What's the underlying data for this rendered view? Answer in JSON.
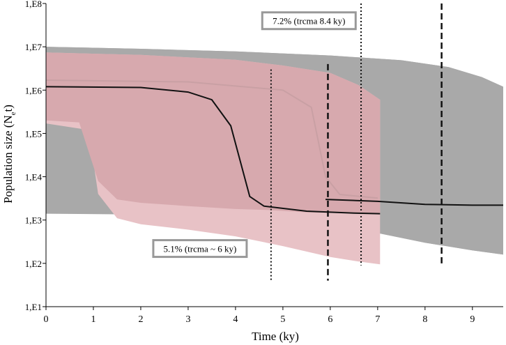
{
  "chart_data": {
    "type": "area",
    "xlabel": "Time (ky)",
    "ylabel_main": "Population size (N",
    "ylabel_sub": "e",
    "ylabel_tail": "t)",
    "log_scale_y": true,
    "xlim": [
      0,
      9.65
    ],
    "ylim": [
      10,
      100000000
    ],
    "x_ticks": [
      0,
      1,
      2,
      3,
      4,
      5,
      6,
      7,
      8,
      9
    ],
    "y_ticks": [
      {
        "value": 10,
        "label": "1,E1"
      },
      {
        "value": 100,
        "label": "1,E2"
      },
      {
        "value": 1000,
        "label": "1,E3"
      },
      {
        "value": 10000,
        "label": "1,E4"
      },
      {
        "value": 100000,
        "label": "1,E5"
      },
      {
        "value": 1000000,
        "label": "1,E6"
      },
      {
        "value": 10000000,
        "label": "1,E7"
      },
      {
        "value": 100000000,
        "label": "1,E8"
      }
    ],
    "grid": false,
    "series": [
      {
        "color": "#a9a9a9",
        "band_upper": [
          [
            0,
            10000000
          ],
          [
            2,
            9000000
          ],
          [
            4,
            7800000
          ],
          [
            6,
            6300000
          ],
          [
            7.5,
            4900000
          ],
          [
            8.5,
            3400000
          ],
          [
            9.2,
            2000000
          ],
          [
            9.65,
            1200000
          ]
        ],
        "band_lower": [
          [
            3.5,
            1300
          ],
          [
            4.7,
            1200
          ],
          [
            6,
            800
          ],
          [
            7,
            500
          ],
          [
            8,
            300
          ],
          [
            9,
            200
          ],
          [
            9.65,
            160
          ]
        ],
        "median": [
          [
            5.9,
            3000
          ],
          [
            7,
            2700
          ],
          [
            8,
            2300
          ],
          [
            9,
            2200
          ],
          [
            9.65,
            2200
          ]
        ]
      },
      {
        "color": "#c08a92",
        "band_upper": [
          [
            0,
            7400000
          ],
          [
            2,
            6500000
          ],
          [
            4,
            5000000
          ],
          [
            5,
            3700000
          ],
          [
            6,
            2500000
          ],
          [
            6.6,
            1300000
          ],
          [
            7.05,
            600000
          ]
        ],
        "band_inner_lower": [
          [
            0,
            200000
          ],
          [
            0.7,
            180000
          ],
          [
            1.1,
            8000
          ],
          [
            1.5,
            3000
          ],
          [
            2,
            2500
          ],
          [
            3,
            2100
          ],
          [
            4,
            1800
          ],
          [
            4.7,
            1700
          ],
          [
            5.5,
            1500
          ],
          [
            7.05,
            1400
          ]
        ],
        "band_lower": [
          [
            0,
            170000
          ],
          [
            0.9,
            120000
          ],
          [
            1.1,
            4000
          ],
          [
            1.5,
            1100
          ],
          [
            2,
            800
          ],
          [
            3,
            600
          ],
          [
            4,
            420
          ],
          [
            5,
            250
          ],
          [
            6,
            140
          ],
          [
            6.6,
            110
          ],
          [
            7.05,
            95
          ]
        ],
        "median": [
          [
            0,
            1200000
          ],
          [
            2,
            1150000
          ],
          [
            3,
            900000
          ],
          [
            3.5,
            600000
          ],
          [
            3.9,
            150000
          ],
          [
            4.3,
            3500
          ],
          [
            4.6,
            2100
          ],
          [
            5.5,
            1600
          ],
          [
            6.5,
            1450
          ],
          [
            7.05,
            1400
          ]
        ],
        "median_faint": [
          [
            0,
            1700000
          ],
          [
            3,
            1550000
          ],
          [
            5,
            1000000
          ],
          [
            5.6,
            400000
          ],
          [
            5.9,
            10000
          ],
          [
            6.2,
            3900
          ],
          [
            7,
            3200
          ]
        ]
      }
    ],
    "vlines": [
      {
        "x": 4.75,
        "style": "dotted",
        "y_top": 3000000,
        "y_bottom": 40
      },
      {
        "x": 5.95,
        "style": "dashed",
        "y_top": 4000000,
        "y_bottom": 40
      },
      {
        "x": 6.65,
        "style": "dotted",
        "y_top": 100000000,
        "y_bottom": 90
      },
      {
        "x": 8.35,
        "style": "dashed",
        "y_top": 100000000,
        "y_bottom": 100
      }
    ],
    "annotations": [
      {
        "text": "7.2% (trcma 8.4 ky)",
        "x": 5.55,
        "y": 40000000
      },
      {
        "text": "5.1% (trcma ~ 6 ky)",
        "x": 3.25,
        "y": 220
      }
    ]
  }
}
